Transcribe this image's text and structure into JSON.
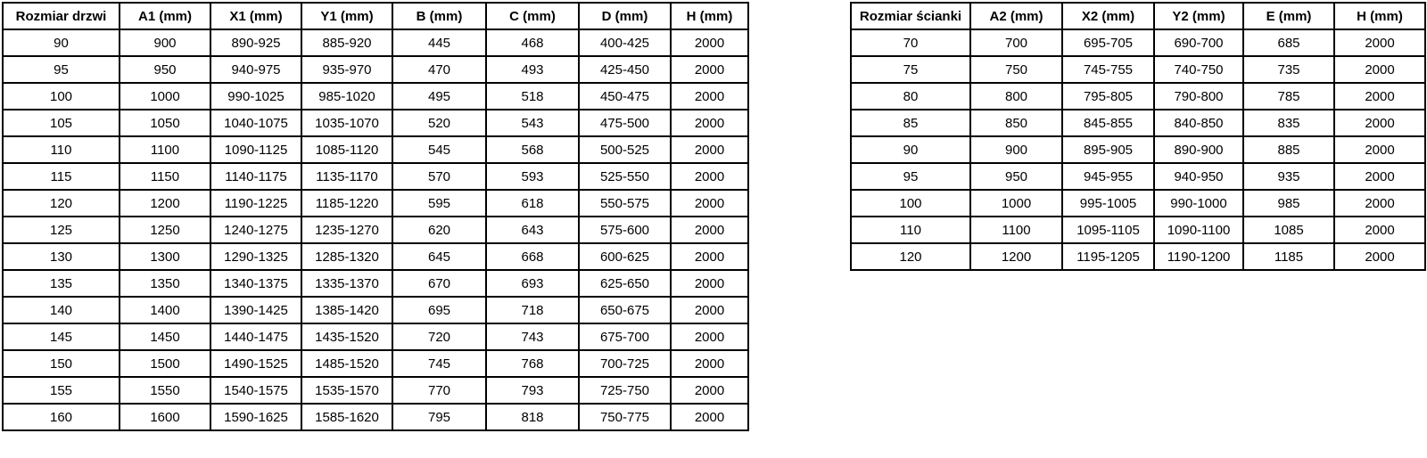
{
  "page": {
    "background_color": "#ffffff",
    "border_color": "#000000",
    "text_color": "#000000"
  },
  "door_table": {
    "headers": [
      "Rozmiar drzwi",
      "A1 (mm)",
      "X1 (mm)",
      "Y1 (mm)",
      "B (mm)",
      "C (mm)",
      "D (mm)",
      "H (mm)"
    ],
    "rows": [
      [
        "90",
        "900",
        "890-925",
        "885-920",
        "445",
        "468",
        "400-425",
        "2000"
      ],
      [
        "95",
        "950",
        "940-975",
        "935-970",
        "470",
        "493",
        "425-450",
        "2000"
      ],
      [
        "100",
        "1000",
        "990-1025",
        "985-1020",
        "495",
        "518",
        "450-475",
        "2000"
      ],
      [
        "105",
        "1050",
        "1040-1075",
        "1035-1070",
        "520",
        "543",
        "475-500",
        "2000"
      ],
      [
        "110",
        "1100",
        "1090-1125",
        "1085-1120",
        "545",
        "568",
        "500-525",
        "2000"
      ],
      [
        "115",
        "1150",
        "1140-1175",
        "1135-1170",
        "570",
        "593",
        "525-550",
        "2000"
      ],
      [
        "120",
        "1200",
        "1190-1225",
        "1185-1220",
        "595",
        "618",
        "550-575",
        "2000"
      ],
      [
        "125",
        "1250",
        "1240-1275",
        "1235-1270",
        "620",
        "643",
        "575-600",
        "2000"
      ],
      [
        "130",
        "1300",
        "1290-1325",
        "1285-1320",
        "645",
        "668",
        "600-625",
        "2000"
      ],
      [
        "135",
        "1350",
        "1340-1375",
        "1335-1370",
        "670",
        "693",
        "625-650",
        "2000"
      ],
      [
        "140",
        "1400",
        "1390-1425",
        "1385-1420",
        "695",
        "718",
        "650-675",
        "2000"
      ],
      [
        "145",
        "1450",
        "1440-1475",
        "1435-1520",
        "720",
        "743",
        "675-700",
        "2000"
      ],
      [
        "150",
        "1500",
        "1490-1525",
        "1485-1520",
        "745",
        "768",
        "700-725",
        "2000"
      ],
      [
        "155",
        "1550",
        "1540-1575",
        "1535-1570",
        "770",
        "793",
        "725-750",
        "2000"
      ],
      [
        "160",
        "1600",
        "1590-1625",
        "1585-1620",
        "795",
        "818",
        "750-775",
        "2000"
      ]
    ]
  },
  "wall_table": {
    "headers": [
      "Rozmiar ścianki",
      "A2 (mm)",
      "X2 (mm)",
      "Y2 (mm)",
      "E (mm)",
      "H (mm)"
    ],
    "rows": [
      [
        "70",
        "700",
        "695-705",
        "690-700",
        "685",
        "2000"
      ],
      [
        "75",
        "750",
        "745-755",
        "740-750",
        "735",
        "2000"
      ],
      [
        "80",
        "800",
        "795-805",
        "790-800",
        "785",
        "2000"
      ],
      [
        "85",
        "850",
        "845-855",
        "840-850",
        "835",
        "2000"
      ],
      [
        "90",
        "900",
        "895-905",
        "890-900",
        "885",
        "2000"
      ],
      [
        "95",
        "950",
        "945-955",
        "940-950",
        "935",
        "2000"
      ],
      [
        "100",
        "1000",
        "995-1005",
        "990-1000",
        "985",
        "2000"
      ],
      [
        "110",
        "1100",
        "1095-1105",
        "1090-1100",
        "1085",
        "2000"
      ],
      [
        "120",
        "1200",
        "1195-1205",
        "1190-1200",
        "1185",
        "2000"
      ]
    ]
  }
}
